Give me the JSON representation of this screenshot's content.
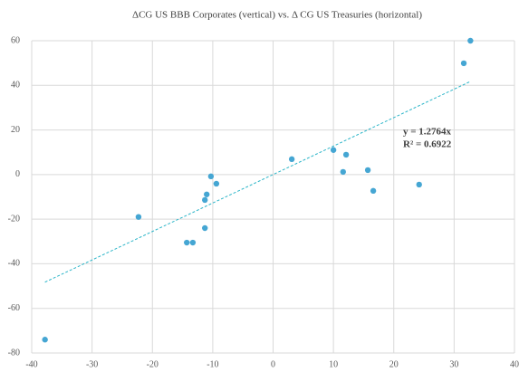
{
  "chart_data": {
    "type": "scatter",
    "title": "ΔCG US BBB Corporates (vertical) vs. Δ CG US Treasuries (horizontal)",
    "x": [
      -37.8,
      -22.3,
      -14.3,
      -13.3,
      -11.3,
      -11.3,
      -11.0,
      -10.3,
      -9.4,
      3.1,
      10.0,
      12.1,
      11.6,
      15.7,
      16.6,
      24.2,
      31.6,
      32.7
    ],
    "values": [
      -74,
      -19,
      -30.5,
      -30.5,
      -24,
      -11.4,
      -8.9,
      -0.8,
      -4.1,
      6.9,
      11.0,
      8.9,
      1.2,
      2.0,
      -7.3,
      -4.5,
      49.9,
      60
    ],
    "color": "#45a6d3",
    "trendline": {
      "slope": 1.2764,
      "color": "#2bb5c8",
      "label": "y = 1.2764x",
      "r2_label": "R² = 0.6922"
    },
    "xlim": [
      -40,
      40
    ],
    "xticks": [
      -40,
      -30,
      -20,
      -10,
      0,
      10,
      20,
      30,
      40
    ],
    "ylim": [
      -80,
      60
    ],
    "yticks": [
      -80,
      -60,
      -40,
      -20,
      0,
      20,
      40,
      60
    ],
    "grid": true
  }
}
